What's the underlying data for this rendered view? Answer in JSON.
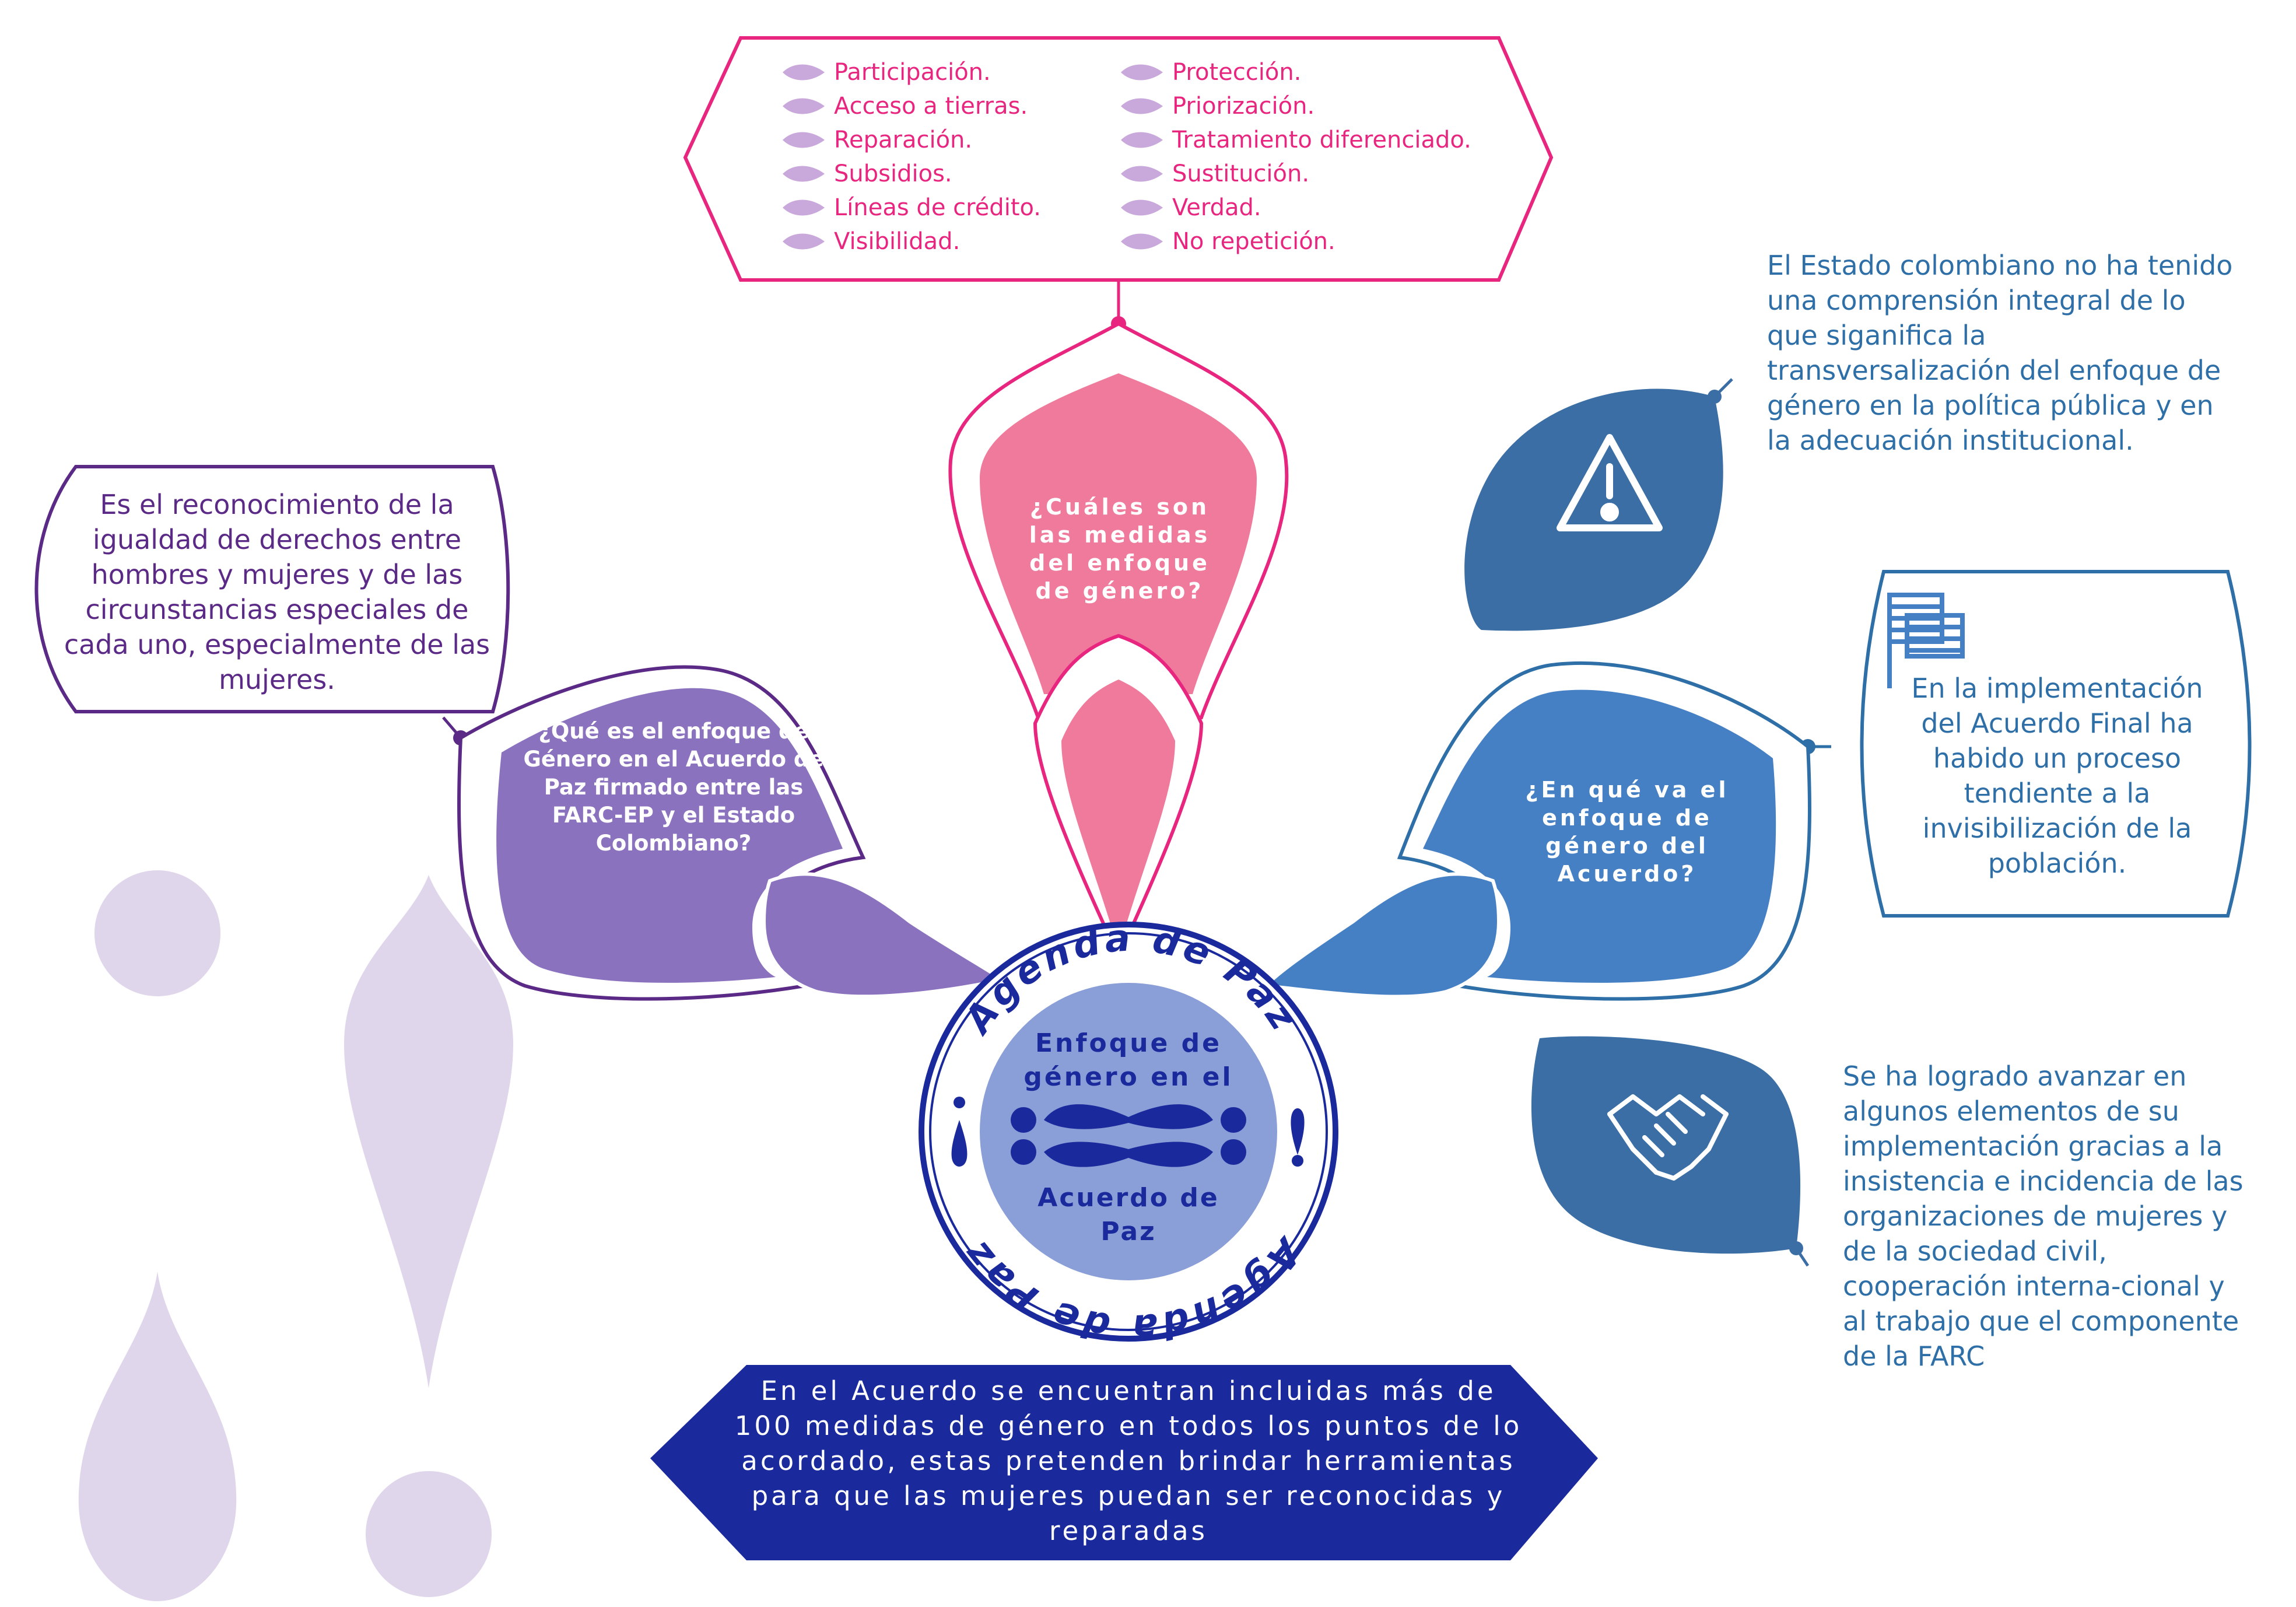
{
  "colors": {
    "pink": "#E8257F",
    "pink_fill": "#F07A9C",
    "purple": "#5B2A86",
    "purple_fill": "#8B72BF",
    "blue": "#2F6FA8",
    "blue_fill": "#4680C4",
    "steel_blue": "#3A6EA5",
    "navy": "#1A2A9C",
    "lavender": "#E0D6EC",
    "center_fill": "#8A9ED8"
  },
  "measures": {
    "left": [
      "Participación.",
      "Acceso a tierras.",
      "Reparación.",
      "Subsidios.",
      "Líneas de crédito.",
      "Visibilidad."
    ],
    "right": [
      "Protección.",
      "Priorización.",
      "Tratamiento diferenciado.",
      "Sustitución.",
      "Verdad.",
      "No repetición."
    ]
  },
  "questions": {
    "measures_q": "¿Cuáles son las medidas del enfoque de género?",
    "what_q": "¿Qué es el enfoque de Género en el Acuerdo de Paz firmado entre las FARC-EP y el Estado Colombiano?",
    "progress_q": "¿En qué va el enfoque de género del Acuerdo?"
  },
  "definition": "Es el reconocimiento de la igualdad de derechos entre hombres y mujeres y de las circunstancias especiales de cada uno, especialmente de las mujeres.",
  "warning_text": "El Estado colombiano no ha tenido una comprensión integral de lo que siganifica la transversalización del enfoque de género en la política pública y en la adecuación institucional.",
  "invisibility_text": "En la implementación del Acuerdo Final ha habido un proceso tendiente a la invisibilización de la población.",
  "advance_text": "Se ha logrado avanzar en algunos elementos de su implementación gracias a la insistencia e incidencia de las organizaciones de mujeres y de la sociedad civil, cooperación interna-cional y al trabajo que el componente de la FARC",
  "center": {
    "ring_text": "Agenda de Paz",
    "title_top": "Enfoque de género en el",
    "title_bottom": "Acuerdo de Paz"
  },
  "bottom_text": "En el Acuerdo se encuentran incluidas más de 100 medidas de género en todos los puntos de lo acordado, estas pretenden brindar herramientas para que las mujeres puedan ser reconocidas y reparadas",
  "icons": {
    "warning": "warning-triangle-icon",
    "flag": "flag-icon",
    "handshake": "handshake-icon"
  }
}
